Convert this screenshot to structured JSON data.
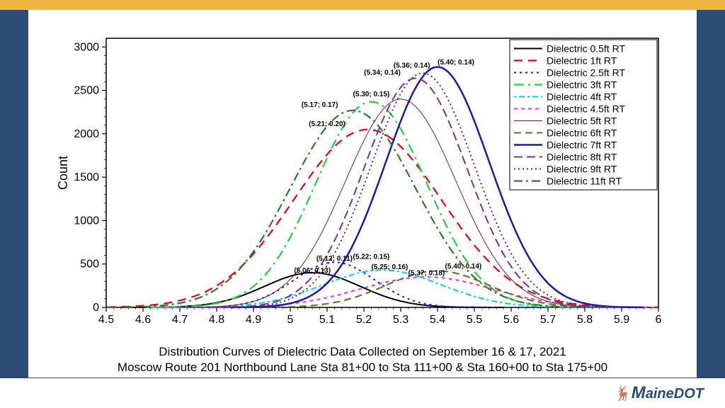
{
  "chart": {
    "type": "line-distribution",
    "background_color": "#ffffff",
    "frame": {
      "sidebar_color": "#2b4c76",
      "topbar_color": "#f0b642"
    },
    "xlim": [
      4.5,
      6.0
    ],
    "ylim": [
      0,
      3100
    ],
    "xticks": [
      4.5,
      4.6,
      4.7,
      4.8,
      4.9,
      5.0,
      5.1,
      5.2,
      5.3,
      5.4,
      5.5,
      5.6,
      5.7,
      5.8,
      5.9,
      6.0
    ],
    "yticks": [
      0,
      500,
      1000,
      1500,
      2000,
      2500,
      3000
    ],
    "ylabel": "Count",
    "caption_line1": "Distribution Curves of Dielectric Data Collected on September 16 & 17, 2021",
    "caption_line2": "Moscow Route 201 Northbound Lane Sta 81+00 to Sta 111+00 & Sta 160+00 to Sta 175+00",
    "brand": "MaineDOT",
    "grid_color": "#000000",
    "axis_width": 1.5,
    "peak_label_fontsize": 10,
    "legend_fontsize": 14,
    "axis_fontsize": 16,
    "caption_fontsize": 17,
    "series": [
      {
        "name": "Dielectric 0.5ft RT",
        "color": "#000000",
        "dash": "",
        "width": 2,
        "mean": 5.06,
        "sigma": 0.13,
        "peak": 400,
        "show_label": true,
        "lx": 5.06,
        "ly": 400,
        "label": "(5.06; 0.13)"
      },
      {
        "name": "Dielectric 1ft RT",
        "color": "#e8001b",
        "dash": "12,8",
        "width": 2.2,
        "mean": 5.21,
        "sigma": 0.2,
        "peak": 2050,
        "show_label": true,
        "lx": 5.1,
        "ly": 2090,
        "label": "(5.21; 0.20)"
      },
      {
        "name": "Dielectric 2.5ft RT",
        "color": "#1a1ae8",
        "dash": "3,5",
        "width": 2,
        "mean": 5.12,
        "sigma": 0.11,
        "peak": 520,
        "show_label": true,
        "lx": 5.12,
        "ly": 540,
        "label": "(5.12; 0.11)"
      },
      {
        "name": "Dielectric 3ft RT",
        "color": "#1fd43c",
        "dash": "14,6,3,6",
        "width": 2.2,
        "mean": 5.22,
        "sigma": 0.15,
        "peak": 2370,
        "show_label": true,
        "lx": 5.22,
        "ly": 560,
        "label": "(5.22; 0.15)"
      },
      {
        "name": "Dielectric 4ft RT",
        "color": "#00d0e8",
        "dash": "3,4,8,4",
        "width": 2,
        "mean": 5.25,
        "sigma": 0.16,
        "peak": 430,
        "show_label": true,
        "lx": 5.27,
        "ly": 440,
        "label": "(5.25; 0.16)"
      },
      {
        "name": "Dielectric 4.5ft RT",
        "color": "#e835c7",
        "dash": "5,5",
        "width": 2,
        "mean": 5.37,
        "sigma": 0.18,
        "peak": 350,
        "show_label": true,
        "lx": 5.37,
        "ly": 370,
        "label": "(5.37; 0.18)"
      },
      {
        "name": "Dielectric 5ft RT",
        "color": "#7a1f1f",
        "dash": "",
        "width": 1,
        "mean": 5.3,
        "sigma": 0.15,
        "peak": 2400,
        "show_label": true,
        "lx": 5.22,
        "ly": 2430,
        "label": "(5.30; 0.15)"
      },
      {
        "name": "Dielectric 6ft RT",
        "color": "#6b6b1f",
        "dash": "10,6",
        "width": 2,
        "mean": 5.4,
        "sigma": 0.14,
        "peak": 420,
        "show_label": true,
        "lx": 5.47,
        "ly": 450,
        "label": "(5.40; 0.14)"
      },
      {
        "name": "Dielectric 7ft RT",
        "color": "#1a1ab0",
        "dash": "",
        "width": 2.5,
        "mean": 5.4,
        "sigma": 0.14,
        "peak": 2770,
        "show_label": true,
        "lx": 5.45,
        "ly": 2800,
        "label": "(5.40; 0.14)"
      },
      {
        "name": "Dielectric 8ft RT",
        "color": "#7a2fa3",
        "dash": "12,6",
        "width": 2,
        "mean": 5.34,
        "sigma": 0.14,
        "peak": 2640,
        "show_label": true,
        "lx": 5.25,
        "ly": 2680,
        "label": "(5.34; 0.14)"
      },
      {
        "name": "Dielectric 9ft RT",
        "color": "#5c2f2f",
        "dash": "2,4",
        "width": 2,
        "mean": 5.36,
        "sigma": 0.14,
        "peak": 2700,
        "show_label": true,
        "lx": 5.33,
        "ly": 2760,
        "label": "(5.36; 0.14)"
      },
      {
        "name": "Dielectric 11ft RT",
        "color": "#2f7a2f",
        "dash": "12,5,3,5",
        "width": 2.2,
        "mean": 5.17,
        "sigma": 0.17,
        "peak": 2270,
        "show_label": true,
        "lx": 5.08,
        "ly": 2310,
        "label": "(5.17; 0.17)"
      }
    ]
  }
}
